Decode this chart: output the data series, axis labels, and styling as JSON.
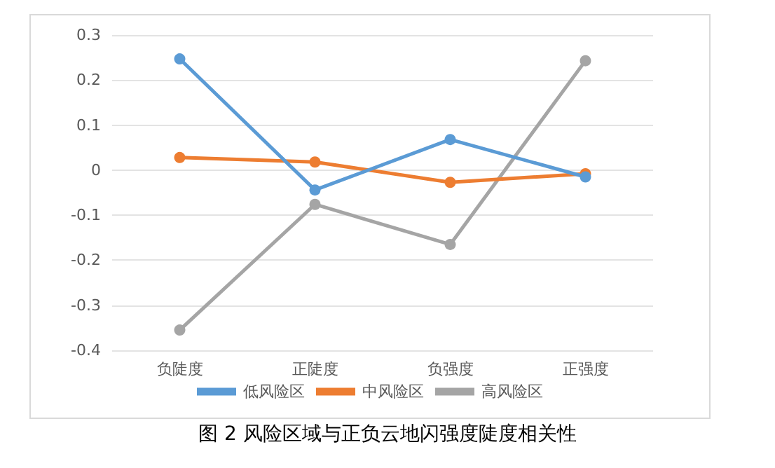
{
  "chart_data": {
    "type": "line",
    "categories": [
      "负陡度",
      "正陡度",
      "负强度",
      "正强度"
    ],
    "series": [
      {
        "name": "低风险区",
        "color": "#5b9bd5",
        "values": [
          0.247,
          -0.044,
          0.068,
          -0.015
        ]
      },
      {
        "name": "中风险区",
        "color": "#ed7d31",
        "values": [
          0.028,
          0.018,
          -0.027,
          -0.008
        ]
      },
      {
        "name": "高风险区",
        "color": "#a5a5a5",
        "values": [
          -0.355,
          -0.076,
          -0.165,
          0.243
        ]
      }
    ],
    "ylim": [
      -0.4,
      0.3
    ],
    "yticks": [
      -0.4,
      -0.3,
      -0.2,
      -0.1,
      0,
      0.1,
      0.2,
      0.3
    ],
    "grid": "y",
    "legend": "bottom",
    "marker": "circle",
    "line_style": "solid",
    "annotations": [
      "图 2 风险区域与正负云地闪强度陡度相关性"
    ]
  }
}
